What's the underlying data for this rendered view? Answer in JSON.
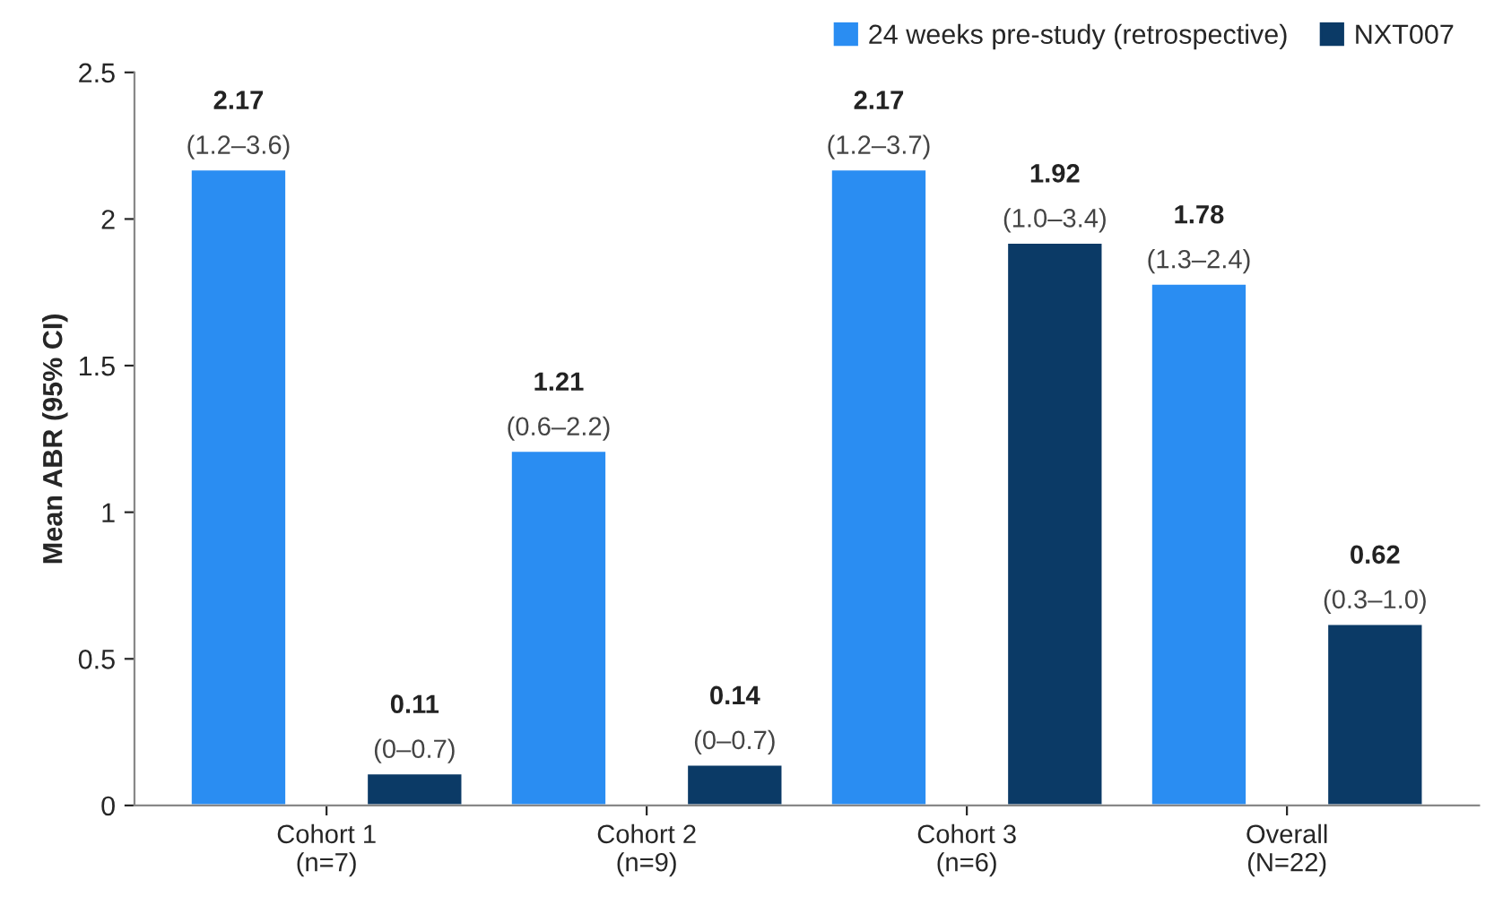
{
  "chart_data": {
    "type": "bar",
    "ylabel": "Mean ABR (95% CI)",
    "categories": [
      "Cohort 1\n(n=7)",
      "Cohort 2\n(n=9)",
      "Cohort 3\n(n=6)",
      "Overall\n(N=22)"
    ],
    "series": [
      {
        "name": "24 weeks pre-study (retrospective)",
        "color": "#2a8df2",
        "values": [
          2.17,
          1.21,
          2.17,
          1.78
        ],
        "value_labels": [
          "2.17\n(1.2–3.6)",
          "1.21\n(0.6–2.2)",
          "2.17\n(1.2–3.7)",
          "1.78\n(1.3–2.4)"
        ]
      },
      {
        "name": "NXT007",
        "color": "#0b3a66",
        "values": [
          0.11,
          0.14,
          1.92,
          0.62
        ],
        "value_labels": [
          "0.11\n(0–0.7)",
          "0.14\n(0–0.7)",
          "1.92\n(1.0–3.4)",
          "0.62\n(0.3–1.0)"
        ]
      }
    ],
    "ylim": [
      0,
      2.5
    ],
    "yticks": [
      0,
      0.5,
      1,
      1.5,
      2,
      2.5
    ],
    "grid": false,
    "legend": "top right"
  }
}
